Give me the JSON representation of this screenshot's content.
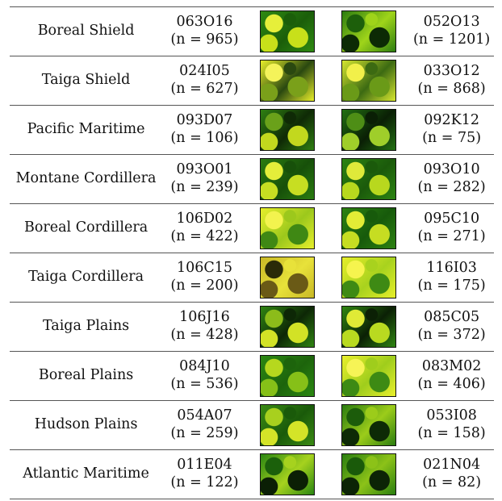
{
  "rows": [
    {
      "region": "Boreal Shield",
      "left_tile": "063O16",
      "left_n": "(n = 965)",
      "right_tile": "052O13",
      "right_n": "(n = 1201)",
      "left_img_colors": [
        "#2f8a12",
        "#c8e01a",
        "#1b5e0a",
        "#e6ef3a"
      ],
      "right_img_colors": [
        "#2c7d10",
        "#0c2a05",
        "#9fd41a",
        "#1d5f0b"
      ]
    },
    {
      "region": "Taiga Shield",
      "left_tile": "024I05",
      "left_n": "(n = 627)",
      "right_tile": "033O12",
      "right_n": "(n = 868)",
      "left_img_colors": [
        "#e7ee2a",
        "#7aa01a",
        "#2a4810",
        "#f4f35a"
      ],
      "right_img_colors": [
        "#d6e630",
        "#6a9a18",
        "#3c6a12",
        "#f2f04a"
      ]
    },
    {
      "region": "Pacific Maritime",
      "left_tile": "093D07",
      "left_n": "(n = 106)",
      "right_tile": "092K12",
      "right_n": "(n = 75)",
      "left_img_colors": [
        "#2f7f12",
        "#c2d81e",
        "#0f2a06",
        "#6aa11a"
      ],
      "right_img_colors": [
        "#227012",
        "#9fce2a",
        "#0a1f05",
        "#4e8e16"
      ]
    },
    {
      "region": "Montane Cordillera",
      "left_tile": "093O01",
      "left_n": "(n = 239)",
      "right_tile": "093O10",
      "right_n": "(n = 282)",
      "left_img_colors": [
        "#2a7c10",
        "#c7de22",
        "#17500a",
        "#e4ee3a"
      ],
      "right_img_colors": [
        "#2c8412",
        "#b8d81e",
        "#1b5a0b",
        "#dfe93a"
      ]
    },
    {
      "region": "Boreal Cordillera",
      "left_tile": "106D02",
      "left_n": "(n = 422)",
      "right_tile": "095C10",
      "right_n": "(n = 271)",
      "left_img_colors": [
        "#e6ee2c",
        "#3f8814",
        "#9cc81c",
        "#f3f34e"
      ],
      "right_img_colors": [
        "#2d8212",
        "#c6dd22",
        "#175a0b",
        "#e3ec36"
      ]
    },
    {
      "region": "Taiga Cordillera",
      "left_tile": "106C15",
      "left_n": "(n = 200)",
      "right_tile": "116I03",
      "right_n": "(n = 175)",
      "left_img_colors": [
        "#c8b826",
        "#6a5a16",
        "#e8e23a",
        "#2a2a08"
      ],
      "right_img_colors": [
        "#e6ee2a",
        "#3e8a14",
        "#a8d21e",
        "#f6f44e"
      ]
    },
    {
      "region": "Taiga Plains",
      "left_tile": "106J16",
      "left_n": "(n = 428)",
      "right_tile": "085C05",
      "right_n": "(n = 372)",
      "left_img_colors": [
        "#2f8412",
        "#d2e226",
        "#0d2706",
        "#8cbc1a"
      ],
      "right_img_colors": [
        "#2f8612",
        "#b9da20",
        "#0b2005",
        "#e0ea36"
      ]
    },
    {
      "region": "Boreal Plains",
      "left_tile": "084J10",
      "left_n": "(n = 536)",
      "right_tile": "083M02",
      "right_n": "(n = 406)",
      "left_img_colors": [
        "#2b8812",
        "#86c018",
        "#1d640c",
        "#b6d81e"
      ],
      "right_img_colors": [
        "#e9ef2c",
        "#3d8a14",
        "#9fcd1c",
        "#f6f456"
      ]
    },
    {
      "region": "Hudson Plains",
      "left_tile": "054A07",
      "left_n": "(n = 259)",
      "right_tile": "053I08",
      "right_n": "(n = 158)",
      "left_img_colors": [
        "#3a8a14",
        "#d4e428",
        "#1a5a0a",
        "#a8d01e"
      ],
      "right_img_colors": [
        "#2a7c10",
        "#0d2a06",
        "#9ccc1a",
        "#1c5c0b"
      ]
    },
    {
      "region": "Atlantic Maritime",
      "left_tile": "011E04",
      "left_n": "(n = 122)",
      "right_tile": "021N04",
      "right_n": "(n = 82)",
      "left_img_colors": [
        "#2a8612",
        "#0b1f05",
        "#a6d21e",
        "#1b600b"
      ],
      "right_img_colors": [
        "#2a7e10",
        "#0c2406",
        "#8cc218",
        "#1a5a0a"
      ]
    }
  ]
}
